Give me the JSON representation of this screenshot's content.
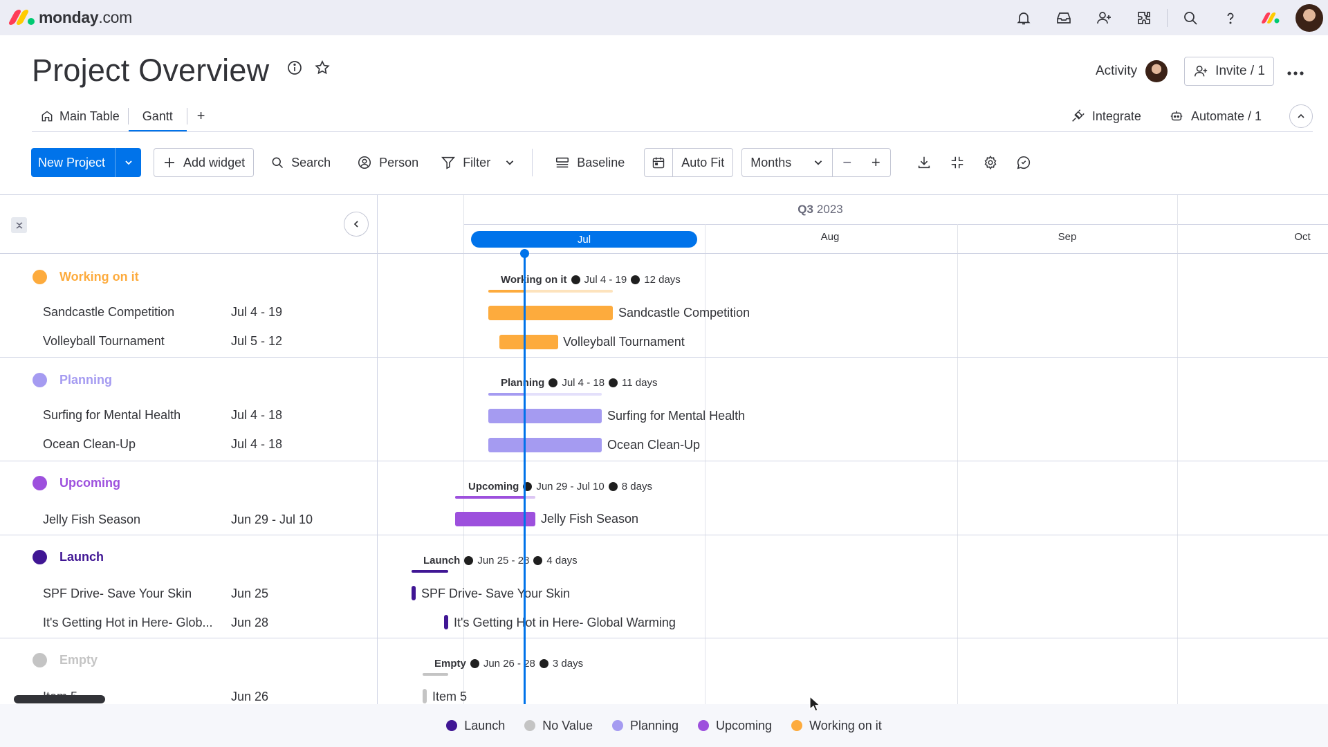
{
  "app": {
    "logo_brand": "monday",
    "logo_suffix": ".com",
    "logo_colors": [
      "#ff3d57",
      "#ffcb00",
      "#00ca72"
    ]
  },
  "topbar": {
    "icons": [
      "bell-icon",
      "inbox-icon",
      "invite-members-icon",
      "apps-icon",
      "search-icon",
      "help-icon",
      "monday-apps-icon",
      "user-avatar"
    ]
  },
  "header": {
    "title": "Project Overview",
    "activity_label": "Activity",
    "invite_label": "Invite / 1"
  },
  "tabs": {
    "items": [
      {
        "label": "Main Table",
        "active": false
      },
      {
        "label": "Gantt",
        "active": true
      }
    ],
    "add_label": "+",
    "integrate_label": "Integrate",
    "automate_label": "Automate / 1"
  },
  "toolbar": {
    "new_project_label": "New Project",
    "add_widget_label": "Add widget",
    "search_label": "Search",
    "person_label": "Person",
    "filter_label": "Filter",
    "baseline_label": "Baseline",
    "auto_fit_label": "Auto Fit",
    "scale_label": "Months",
    "zoom_out_label": "−",
    "zoom_in_label": "+"
  },
  "timeline": {
    "quarter": "Q3",
    "year": "2023",
    "months": [
      "Jul",
      "Aug",
      "Sep",
      "Oct"
    ]
  },
  "groups": [
    {
      "name": "Working on it",
      "color": "#fdab3d",
      "light": "#fde3bd",
      "range": "Jul 4 - 19",
      "duration": "12 days",
      "items": [
        {
          "name": "Sandcastle Competition",
          "date": "Jul 4 - 19"
        },
        {
          "name": "Volleyball Tournament",
          "date": "Jul 5 - 12"
        }
      ]
    },
    {
      "name": "Planning",
      "color": "#a59bf1",
      "light": "#e4e0fb",
      "range": "Jul 4 - 18",
      "duration": "11 days",
      "items": [
        {
          "name": "Surfing for Mental Health",
          "date": "Jul 4 - 18"
        },
        {
          "name": "Ocean Clean-Up",
          "date": "Jul 4 - 18"
        }
      ]
    },
    {
      "name": "Upcoming",
      "color": "#9d50dd",
      "light": "#dcc6f3",
      "range": "Jun 29 - Jul 10",
      "duration": "8 days",
      "items": [
        {
          "name": "Jelly Fish Season",
          "date": "Jun 29 - Jul 10"
        }
      ]
    },
    {
      "name": "Launch",
      "color": "#401694",
      "light": "#401694",
      "range": "Jun 25 - 28",
      "duration": "4 days",
      "items": [
        {
          "name": "SPF Drive- Save Your Skin",
          "date": "Jun 25"
        },
        {
          "name": "It's Getting Hot in Here- Glob...",
          "full_name": "It's Getting Hot in Here- Global Warming",
          "date": "Jun 28"
        }
      ]
    },
    {
      "name": "Empty",
      "color": "#c4c4c4",
      "light": "#c4c4c4",
      "range": "Jun 26 - 28",
      "duration": "3 days",
      "items": [
        {
          "name": "Item 5",
          "date": "Jun 26"
        }
      ]
    }
  ],
  "legend": [
    {
      "label": "Launch",
      "color": "#401694"
    },
    {
      "label": "No Value",
      "color": "#c4c4c4"
    },
    {
      "label": "Planning",
      "color": "#a59bf1"
    },
    {
      "label": "Upcoming",
      "color": "#9d50dd"
    },
    {
      "label": "Working on it",
      "color": "#fdab3d"
    }
  ]
}
